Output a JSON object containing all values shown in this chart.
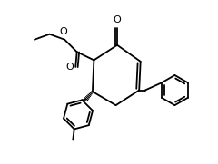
{
  "bg_color": "#ffffff",
  "line_color": "#000000",
  "lw": 1.3,
  "fig_width": 2.4,
  "fig_height": 1.81,
  "dpi": 100,
  "xlim": [
    -3.5,
    3.8
  ],
  "ylim": [
    -3.2,
    2.8
  ]
}
